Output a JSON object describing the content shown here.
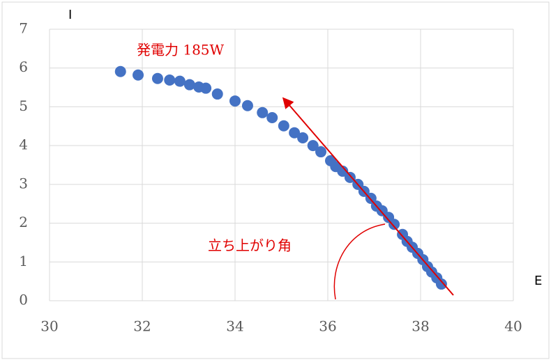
{
  "chart_data": {
    "type": "scatter",
    "x": [
      31.53,
      31.91,
      32.33,
      32.59,
      32.81,
      33.02,
      33.22,
      33.37,
      33.62,
      34.0,
      34.27,
      34.59,
      34.8,
      35.05,
      35.28,
      35.46,
      35.68,
      35.85,
      36.06,
      36.17,
      36.32,
      36.48,
      36.65,
      36.78,
      36.93,
      37.05,
      37.17,
      37.31,
      37.43,
      37.61,
      37.71,
      37.82,
      37.94,
      38.05,
      38.15,
      38.24,
      38.35,
      38.45
    ],
    "values": [
      5.91,
      5.82,
      5.73,
      5.69,
      5.66,
      5.57,
      5.51,
      5.48,
      5.33,
      5.15,
      5.03,
      4.85,
      4.72,
      4.51,
      4.33,
      4.2,
      4.0,
      3.84,
      3.61,
      3.46,
      3.34,
      3.18,
      3.0,
      2.82,
      2.64,
      2.44,
      2.32,
      2.15,
      1.97,
      1.71,
      1.53,
      1.38,
      1.22,
      1.06,
      0.88,
      0.74,
      0.59,
      0.43
    ],
    "color": "#4472c4",
    "x_label": "E",
    "y_label": "I",
    "annotations": [
      "発電力 185W",
      "立ち上がり角"
    ],
    "xlim": [
      30,
      40
    ],
    "xticks": [
      30,
      32,
      34,
      36,
      38,
      40
    ],
    "ylim": [
      0,
      7
    ],
    "yticks": [
      0,
      1,
      2,
      3,
      4,
      5,
      6,
      7
    ],
    "grid": true
  }
}
